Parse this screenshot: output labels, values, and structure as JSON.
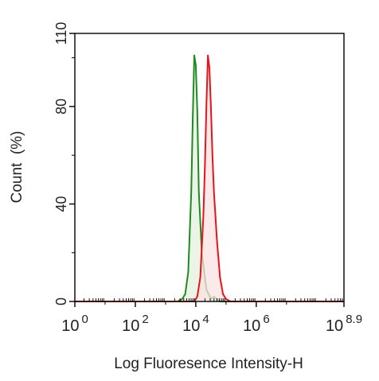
{
  "chart_data": {
    "type": "area",
    "title": "",
    "xlabel": "Log Fluoresence Intensity-H",
    "ylabel": "Count  (%)",
    "x_scale": "log10",
    "xlim": [
      0,
      8.9
    ],
    "ylim": [
      0,
      110
    ],
    "x_ticks": [
      {
        "base": "10",
        "exp": "0",
        "value": 0
      },
      {
        "base": "10",
        "exp": "2",
        "value": 2
      },
      {
        "base": "10",
        "exp": "4",
        "value": 4
      },
      {
        "base": "10",
        "exp": "6",
        "value": 6
      },
      {
        "base": "10",
        "exp": "8.9",
        "value": 8.9
      }
    ],
    "y_ticks": [
      {
        "label": "0",
        "value": 0
      },
      {
        "label": "40",
        "value": 40
      },
      {
        "label": "80",
        "value": 80
      },
      {
        "label": "110",
        "value": 110
      }
    ],
    "grid": false,
    "legend": "none",
    "series": [
      {
        "color": "#1f8a1f",
        "fill": "#e4f1df",
        "x": [
          0,
          3.4,
          3.55,
          3.65,
          3.75,
          3.85,
          3.9,
          3.95,
          4.0,
          4.05,
          4.1,
          4.2,
          4.35,
          4.5,
          4.6,
          4.7,
          4.8,
          8.9
        ],
        "y": [
          0,
          0,
          1,
          3,
          12,
          45,
          75,
          101,
          97,
          78,
          45,
          20,
          5,
          1,
          2,
          1,
          0,
          0
        ]
      },
      {
        "color": "#e8141c",
        "fill": "#fbe1e2",
        "x": [
          0,
          3.95,
          4.05,
          4.15,
          4.25,
          4.3,
          4.35,
          4.4,
          4.45,
          4.5,
          4.55,
          4.6,
          4.7,
          4.8,
          4.9,
          5.0,
          5.15,
          8.9
        ],
        "y": [
          0,
          0,
          2,
          10,
          35,
          55,
          80,
          101,
          96,
          80,
          60,
          45,
          25,
          10,
          3,
          1,
          0,
          0
        ]
      }
    ]
  }
}
